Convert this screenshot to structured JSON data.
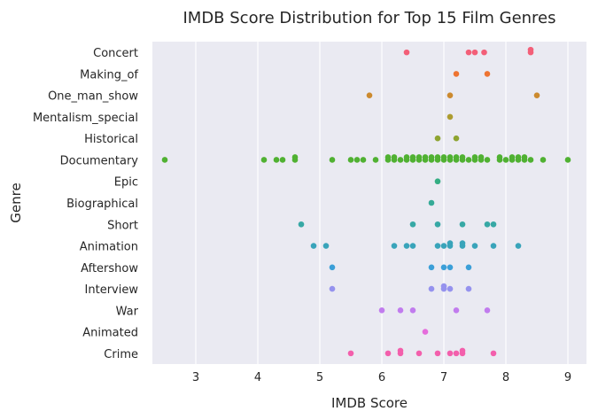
{
  "chart_data": {
    "type": "scatter",
    "title": "IMDB Score Distribution for Top 15 Film Genres",
    "xlabel": "IMDB Score",
    "ylabel": "Genre",
    "xlim": [
      2.3,
      9.3
    ],
    "xticks": [
      3,
      4,
      5,
      6,
      7,
      8,
      9
    ],
    "grid": true,
    "background": "#eaeaf2",
    "categories": [
      "Concert",
      "Making_of",
      "One_man_show",
      "Mentalism_special",
      "Historical",
      "Documentary",
      "Epic",
      "Biographical",
      "Short",
      "Animation",
      "Aftershow",
      "Interview",
      "War",
      "Animated",
      "Crime"
    ],
    "series": [
      {
        "color": "#f35f78",
        "values": [
          6.4,
          7.4,
          7.5,
          7.65,
          8.4,
          8.4
        ]
      },
      {
        "color": "#ee7432",
        "values": [
          7.2,
          7.7
        ]
      },
      {
        "color": "#cc8a2f",
        "values": [
          5.8,
          7.1,
          8.5
        ]
      },
      {
        "color": "#ad9c30",
        "values": [
          7.1
        ]
      },
      {
        "color": "#8ea431",
        "values": [
          6.9,
          7.2
        ]
      },
      {
        "color": "#50b132",
        "values": [
          2.5,
          4.1,
          4.3,
          4.4,
          4.6,
          4.6,
          5.2,
          5.5,
          5.6,
          5.7,
          5.9,
          6.1,
          6.1,
          6.2,
          6.2,
          6.3,
          6.4,
          6.4,
          6.5,
          6.5,
          6.6,
          6.6,
          6.7,
          6.7,
          6.8,
          6.8,
          6.9,
          6.9,
          7.0,
          7.0,
          7.1,
          7.1,
          7.2,
          7.2,
          7.3,
          7.3,
          7.4,
          7.5,
          7.5,
          7.6,
          7.6,
          7.7,
          7.9,
          7.9,
          8.0,
          8.1,
          8.1,
          8.2,
          8.2,
          8.3,
          8.3,
          8.4,
          8.6,
          9.0
        ]
      },
      {
        "color": "#34ad83",
        "values": [
          6.9
        ]
      },
      {
        "color": "#35aa97",
        "values": [
          6.8
        ]
      },
      {
        "color": "#37a8a5",
        "values": [
          4.7,
          6.5,
          6.9,
          7.3,
          7.7,
          7.8
        ]
      },
      {
        "color": "#39a4ba",
        "values": [
          4.9,
          5.1,
          6.2,
          6.4,
          6.5,
          6.9,
          7.0,
          7.1,
          7.1,
          7.3,
          7.3,
          7.5,
          7.8,
          8.2
        ]
      },
      {
        "color": "#3b9fd8",
        "values": [
          5.2,
          6.8,
          7.0,
          7.1,
          7.4
        ]
      },
      {
        "color": "#9592ee",
        "values": [
          5.2,
          6.8,
          7.0,
          7.0,
          7.1,
          7.4
        ]
      },
      {
        "color": "#c17cee",
        "values": [
          6.0,
          6.3,
          6.5,
          7.2,
          7.7
        ]
      },
      {
        "color": "#e56ddc",
        "values": [
          6.7
        ]
      },
      {
        "color": "#f35fac",
        "values": [
          5.5,
          6.1,
          6.3,
          6.3,
          6.6,
          6.9,
          7.1,
          7.2,
          7.3,
          7.3,
          7.8
        ]
      }
    ]
  }
}
